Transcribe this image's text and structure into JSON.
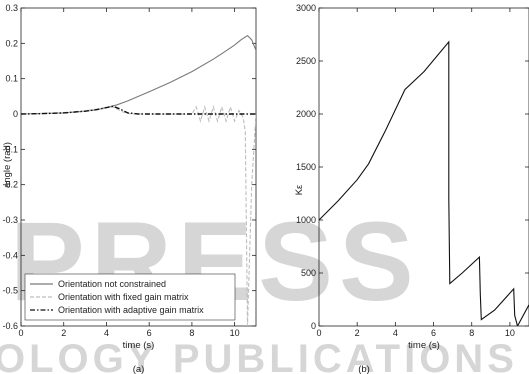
{
  "watermark": {
    "main": "PRESS",
    "bottom": "OLOGY PUBLICATIONS"
  },
  "chart_data": [
    {
      "type": "line",
      "panel_label": "(a)",
      "xlabel": "time (s)",
      "ylabel": "angle (rad)",
      "xlim": [
        0,
        11
      ],
      "ylim": [
        -0.6,
        0.3
      ],
      "xticks": [
        "0",
        "2",
        "4",
        "6",
        "8",
        "10"
      ],
      "yticks": [
        "-0.6",
        "-0.5",
        "-0.4",
        "-0.3",
        "-0.2",
        "-0.1",
        "0",
        "0.1",
        "0.2",
        "0.3"
      ],
      "legend_position": "bottom-left",
      "series": [
        {
          "name": "Orientation not constrained",
          "color": "#7a7a7a",
          "style": "solid",
          "x": [
            0,
            1,
            2,
            3,
            3.5,
            4,
            4.5,
            5,
            6,
            7,
            8,
            9,
            9.5,
            10,
            10.3,
            10.6,
            10.8,
            11
          ],
          "y": [
            0,
            0.001,
            0.003,
            0.008,
            0.012,
            0.018,
            0.026,
            0.037,
            0.063,
            0.09,
            0.12,
            0.155,
            0.175,
            0.195,
            0.21,
            0.222,
            0.21,
            0.18
          ]
        },
        {
          "name": "Orientation with fixed gain matrix",
          "color": "#bdbdbd",
          "style": "dashed",
          "x": [
            0,
            2,
            3,
            4,
            4.3,
            4.8,
            5.2,
            6,
            7,
            8,
            8.2,
            8.4,
            8.6,
            8.8,
            9.0,
            9.2,
            9.4,
            9.6,
            9.8,
            10,
            10.2,
            10.4,
            10.5,
            10.6,
            10.7,
            10.8,
            11
          ],
          "y": [
            0,
            0.004,
            0.009,
            0.018,
            0.02,
            0.005,
            0,
            0,
            0,
            0,
            0.02,
            -0.02,
            0.02,
            -0.02,
            0.02,
            -0.02,
            0.02,
            -0.02,
            0.02,
            -0.02,
            0.01,
            -0.01,
            -0.05,
            -0.6,
            -0.4,
            -0.2,
            0
          ]
        },
        {
          "name": "Orientation with adaptive gain matrix",
          "color": "#111111",
          "style": "dashdot",
          "x": [
            0,
            1,
            2,
            3,
            3.5,
            4,
            4.3,
            4.6,
            5,
            5.5,
            6,
            7,
            8,
            9,
            10,
            11
          ],
          "y": [
            0,
            0.001,
            0.003,
            0.008,
            0.012,
            0.018,
            0.022,
            0.015,
            0.003,
            0,
            0,
            0,
            0,
            0,
            0,
            0
          ]
        }
      ]
    },
    {
      "type": "line",
      "panel_label": "(b)",
      "xlabel": "time (s)",
      "ylabel": "Kε",
      "xlim": [
        0,
        11
      ],
      "ylim": [
        0,
        3000
      ],
      "xticks": [
        "0",
        "2",
        "4",
        "6",
        "8",
        "10"
      ],
      "yticks": [
        "0",
        "500",
        "1000",
        "1500",
        "2000",
        "2500",
        "3000"
      ],
      "series": [
        {
          "color": "#111111",
          "style": "solid",
          "x": [
            0,
            1,
            2,
            2.6,
            3.5,
            4.5,
            5.5,
            6.8,
            6.8,
            6.85,
            7.5,
            8.4,
            8.45,
            8.5,
            9.2,
            10.2,
            10.25,
            10.4,
            11
          ],
          "y": [
            1000,
            1180,
            1380,
            1530,
            1850,
            2230,
            2400,
            2680,
            1200,
            400,
            500,
            650,
            300,
            60,
            150,
            350,
            100,
            0,
            200
          ]
        }
      ]
    }
  ]
}
